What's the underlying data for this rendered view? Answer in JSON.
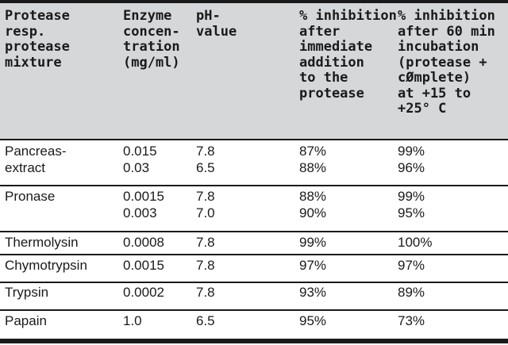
{
  "headers": [
    "Protease\nresp.\nprotease\nmixture",
    "Enzyme\nconcen-\ntration\n(mg/ml)",
    "pH-\nvalue",
    "% inhibition\nafter\nimmediate\naddition\nto the\nprotease",
    "% inhibition\nafter 60 min\nincubation\n(protease +\ncØmplete)\nat +15 to\n+25° C"
  ],
  "rows": [
    {
      "protease": [
        "Pancreas-",
        "extract"
      ],
      "conc": [
        "0.015",
        "0.03"
      ],
      "ph": [
        "7.8",
        "6.5"
      ],
      "immediate": [
        "87%",
        "88%"
      ],
      "incubation": [
        "99%",
        "96%"
      ]
    },
    {
      "protease": [
        "Pronase"
      ],
      "conc": [
        "0.0015",
        "0.003"
      ],
      "ph": [
        "7.8",
        "7.0"
      ],
      "immediate": [
        "88%",
        "90%"
      ],
      "incubation": [
        "99%",
        "95%"
      ]
    },
    {
      "protease": [
        "Thermolysin"
      ],
      "conc": [
        "0.0008"
      ],
      "ph": [
        "7.8"
      ],
      "immediate": [
        "99%"
      ],
      "incubation": [
        "100%"
      ]
    },
    {
      "protease": [
        "Chymotrypsin"
      ],
      "conc": [
        "0.0015"
      ],
      "ph": [
        "7.8"
      ],
      "immediate": [
        "97%"
      ],
      "incubation": [
        "97%"
      ]
    },
    {
      "protease": [
        "Trypsin"
      ],
      "conc": [
        "0.0002"
      ],
      "ph": [
        "7.8"
      ],
      "immediate": [
        "93%"
      ],
      "incubation": [
        "89%"
      ]
    },
    {
      "protease": [
        "Papain"
      ],
      "conc": [
        "1.0"
      ],
      "ph": [
        "6.5"
      ],
      "immediate": [
        "95%"
      ],
      "incubation": [
        "73%"
      ]
    }
  ],
  "colors": {
    "header_bg": "#d6d7d9",
    "rules": "#1a1a1a"
  }
}
